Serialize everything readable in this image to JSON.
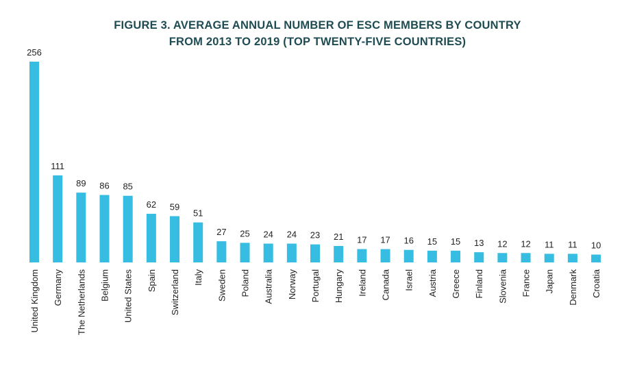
{
  "chart_data": {
    "type": "bar",
    "title_lines": [
      "FIGURE 3. AVERAGE ANNUAL NUMBER OF ESC MEMBERS BY COUNTRY",
      "FROM 2013 TO 2019 (TOP TWENTY-FIVE COUNTRIES)"
    ],
    "categories": [
      "United Kingdom",
      "Germany",
      "The Netherlands",
      "Belgium",
      "United States",
      "Spain",
      "Switzerland",
      "Italy",
      "Sweden",
      "Poland",
      "Australia",
      "Norway",
      "Portugal",
      "Hungary",
      "Ireland",
      "Canada",
      "Israel",
      "Austria",
      "Greece",
      "Finland",
      "Slovenia",
      "France",
      "Japan",
      "Denmark",
      "Croatia"
    ],
    "values": [
      256,
      111,
      89,
      86,
      85,
      62,
      59,
      51,
      27,
      25,
      24,
      24,
      23,
      21,
      17,
      17,
      16,
      15,
      15,
      13,
      12,
      12,
      11,
      11,
      10
    ],
    "xlabel": "",
    "ylabel": "",
    "ylim": [
      0,
      256
    ],
    "grid": false,
    "legend": "none",
    "bar_color": "#36bde1",
    "title_color": "#1f4b52"
  }
}
